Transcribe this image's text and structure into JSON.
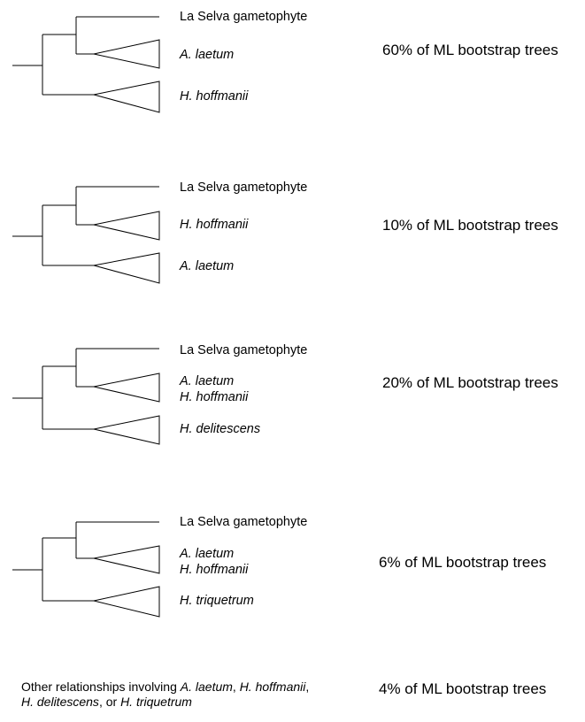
{
  "trees": [
    {
      "tip_label": "La Selva gametophyte",
      "sister_clade": [
        "A. laetum"
      ],
      "outer_clade": [
        "H. hoffmanii"
      ],
      "support": "60% of ML bootstrap trees"
    },
    {
      "tip_label": "La Selva gametophyte",
      "sister_clade": [
        "H. hoffmanii"
      ],
      "outer_clade": [
        "A. laetum"
      ],
      "support": "10% of ML bootstrap trees"
    },
    {
      "tip_label": "La Selva gametophyte",
      "sister_clade": [
        "A. laetum",
        "H. hoffmanii"
      ],
      "outer_clade": [
        "H. delitescens"
      ],
      "support": "20% of ML bootstrap trees"
    },
    {
      "tip_label": "La Selva gametophyte",
      "sister_clade": [
        "A. laetum",
        "H. hoffmanii"
      ],
      "outer_clade": [
        "H. triquetrum"
      ],
      "support": "6% of ML bootstrap trees"
    }
  ],
  "other": {
    "prefix": "Other relationships involving ",
    "t1": "A. laetum",
    "s1": ", ",
    "t2": "H. hoffmanii",
    "s2": ",",
    "t3": "H. delitescens",
    "s3": ", or ",
    "t4": "H. triquetrum",
    "support": "4% of ML bootstrap trees"
  }
}
